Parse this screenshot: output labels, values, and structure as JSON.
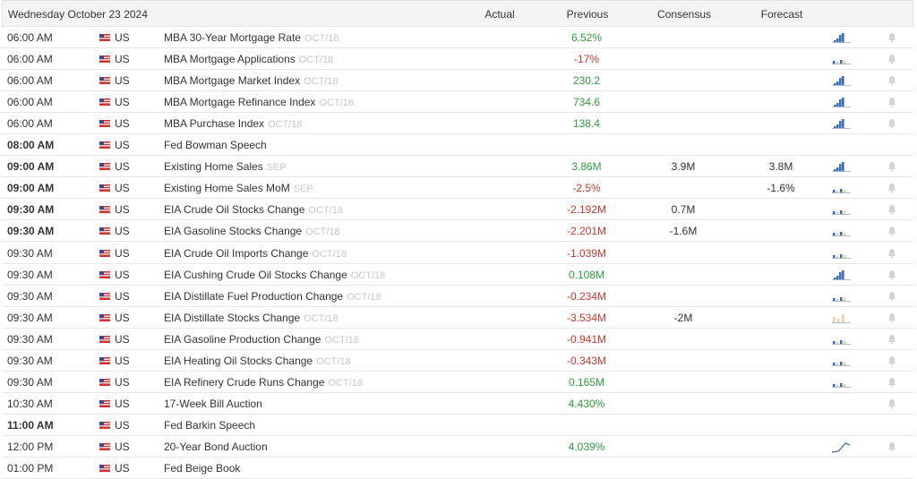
{
  "header": {
    "date": "Wednesday October 23 2024",
    "actual": "Actual",
    "previous": "Previous",
    "consensus": "Consensus",
    "forecast": "Forecast"
  },
  "rows": [
    {
      "time": "06:00 AM",
      "bold": false,
      "country": "US",
      "event": "MBA 30-Year Mortgage Rate",
      "period": "OCT/18",
      "previous": "6.52%",
      "previous_color": "#2f9a3f",
      "chart": "bars",
      "bell": true
    },
    {
      "time": "06:00 AM",
      "bold": false,
      "country": "US",
      "event": "MBA Mortgage Applications",
      "period": "OCT/18",
      "previous": "-17%",
      "previous_color": "#c23b2e",
      "chart": "mixed",
      "bell": true
    },
    {
      "time": "06:00 AM",
      "bold": false,
      "country": "US",
      "event": "MBA Mortgage Market Index",
      "period": "OCT/18",
      "previous": "230.2",
      "previous_color": "#2f9a3f",
      "chart": "bars",
      "bell": true
    },
    {
      "time": "06:00 AM",
      "bold": false,
      "country": "US",
      "event": "MBA Mortgage Refinance Index",
      "period": "OCT/18",
      "previous": "734.6",
      "previous_color": "#2f9a3f",
      "chart": "bars",
      "bell": true
    },
    {
      "time": "06:00 AM",
      "bold": false,
      "country": "US",
      "event": "MBA Purchase Index",
      "period": "OCT/18",
      "previous": "138.4",
      "previous_color": "#2f9a3f",
      "chart": "bars",
      "bell": true
    },
    {
      "time": "08:00 AM",
      "bold": true,
      "country": "US",
      "event": "Fed Bowman Speech",
      "bell": false
    },
    {
      "time": "09:00 AM",
      "bold": true,
      "country": "US",
      "event": "Existing Home Sales",
      "period": "SEP",
      "previous": "3.86M",
      "previous_color": "#2f9a3f",
      "consensus": "3.9M",
      "forecast": "3.8M",
      "chart": "bars",
      "bell": true
    },
    {
      "time": "09:00 AM",
      "bold": true,
      "country": "US",
      "event": "Existing Home Sales MoM",
      "period": "SEP",
      "previous": "-2.5%",
      "previous_color": "#c23b2e",
      "forecast": "-1.6%",
      "chart": "mixed",
      "bell": true
    },
    {
      "time": "09:30 AM",
      "bold": true,
      "country": "US",
      "event": "EIA Crude Oil Stocks Change",
      "period": "OCT/18",
      "previous": "-2.192M",
      "previous_color": "#c23b2e",
      "consensus": "0.7M",
      "chart": "mixed",
      "bell": true
    },
    {
      "time": "09:30 AM",
      "bold": true,
      "country": "US",
      "event": "EIA Gasoline Stocks Change",
      "period": "OCT/18",
      "previous": "-2.201M",
      "previous_color": "#c23b2e",
      "consensus": "-1.6M",
      "chart": "mixed",
      "bell": true
    },
    {
      "time": "09:30 AM",
      "bold": false,
      "country": "US",
      "event": "EIA Crude Oil Imports Change",
      "period": "OCT/18",
      "previous": "-1.039M",
      "previous_color": "#c23b2e",
      "chart": "mixed",
      "bell": true
    },
    {
      "time": "09:30 AM",
      "bold": false,
      "country": "US",
      "event": "EIA Cushing Crude Oil Stocks Change",
      "period": "OCT/18",
      "previous": "0.108M",
      "previous_color": "#2f9a3f",
      "chart": "bars",
      "bell": true
    },
    {
      "time": "09:30 AM",
      "bold": false,
      "country": "US",
      "event": "EIA Distillate Fuel Production Change",
      "period": "OCT/18",
      "previous": "-0.234M",
      "previous_color": "#c23b2e",
      "chart": "mixed",
      "bell": true
    },
    {
      "time": "09:30 AM",
      "bold": false,
      "country": "US",
      "event": "EIA Distillate Stocks Change",
      "period": "OCT/18",
      "previous": "-3.534M",
      "previous_color": "#c23b2e",
      "consensus": "-2M",
      "chart": "tan",
      "bell": true
    },
    {
      "time": "09:30 AM",
      "bold": false,
      "country": "US",
      "event": "EIA Gasoline Production Change",
      "period": "OCT/18",
      "previous": "-0.941M",
      "previous_color": "#c23b2e",
      "chart": "mixed",
      "bell": true
    },
    {
      "time": "09:30 AM",
      "bold": false,
      "country": "US",
      "event": "EIA Heating Oil Stocks Change",
      "period": "OCT/18",
      "previous": "-0.343M",
      "previous_color": "#c23b2e",
      "chart": "mixed",
      "bell": true
    },
    {
      "time": "09:30 AM",
      "bold": false,
      "country": "US",
      "event": "EIA Refinery Crude Runs Change",
      "period": "OCT/18",
      "previous": "0.165M",
      "previous_color": "#2f9a3f",
      "chart": "mixed",
      "bell": true
    },
    {
      "time": "10:30 AM",
      "bold": false,
      "country": "US",
      "event": "17-Week Bill Auction",
      "previous": "4.430%",
      "previous_color": "#2f9a3f",
      "bell": true
    },
    {
      "time": "11:00 AM",
      "bold": true,
      "country": "US",
      "event": "Fed Barkin Speech",
      "bell": false
    },
    {
      "time": "12:00 PM",
      "bold": false,
      "country": "US",
      "event": "20-Year Bond Auction",
      "previous": "4.039%",
      "previous_color": "#2f9a3f",
      "chart": "line",
      "bell": true
    },
    {
      "time": "01:00 PM",
      "bold": false,
      "country": "US",
      "event": "Fed Beige Book",
      "bell": false
    }
  ]
}
